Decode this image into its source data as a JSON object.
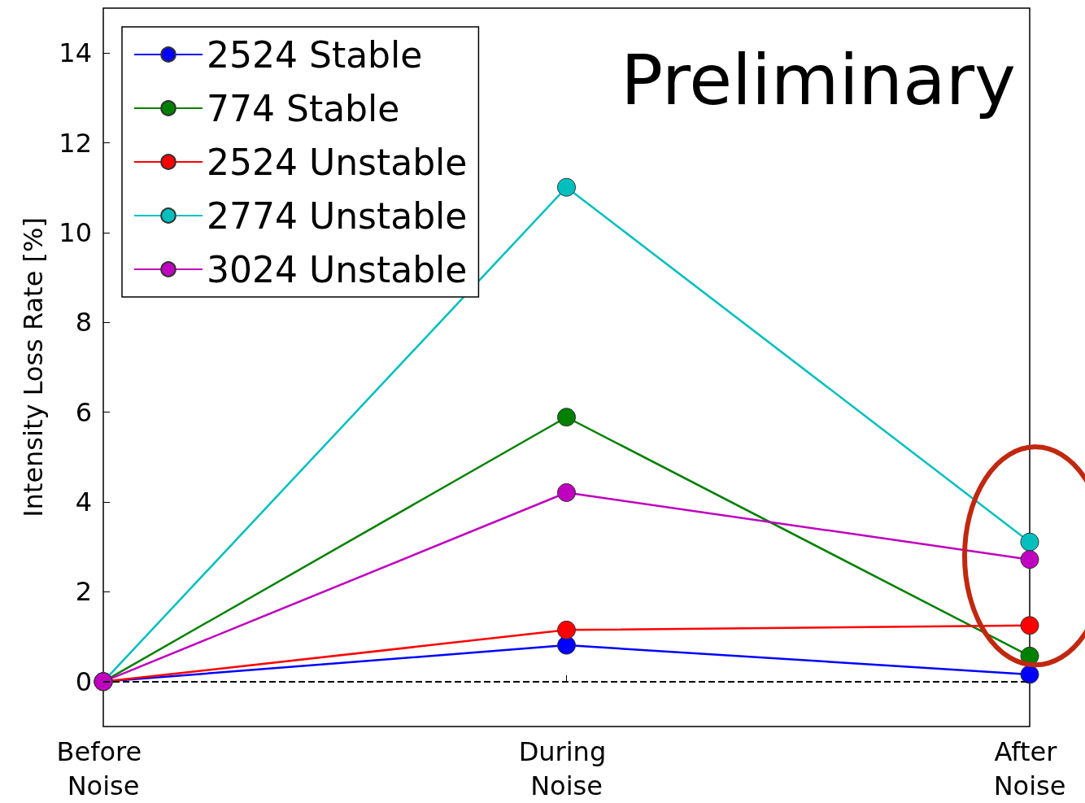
{
  "chart_data": {
    "type": "line",
    "ylabel": "Intensity Loss Rate [%]",
    "categories": [
      "Before Noise",
      "During Noise",
      "After Noise"
    ],
    "series": [
      {
        "name": "2524 Stable",
        "color": "#0000ff",
        "values": [
          0,
          0.81,
          0.16
        ]
      },
      {
        "name": "774 Stable",
        "color": "#008000",
        "values": [
          0,
          5.89,
          0.57
        ]
      },
      {
        "name": "2524 Unstable",
        "color": "#ff0000",
        "values": [
          0,
          1.15,
          1.25
        ]
      },
      {
        "name": "2774 Unstable",
        "color": "#00bfbf",
        "values": [
          0,
          11.01,
          3.11
        ]
      },
      {
        "name": "3024 Unstable",
        "color": "#bf00bf",
        "values": [
          0,
          4.21,
          2.72
        ]
      }
    ],
    "ylim": [
      -1,
      15
    ],
    "yticks": [
      0,
      2,
      4,
      6,
      8,
      10,
      12,
      14
    ],
    "ref_lines": [
      {
        "axis": "y",
        "value": 0,
        "color": "#000000",
        "line_style": "dashed"
      }
    ],
    "annotations": [
      "Preliminary"
    ],
    "grid": false,
    "legend": "top left",
    "marker": "circle",
    "line_style": "solid"
  }
}
